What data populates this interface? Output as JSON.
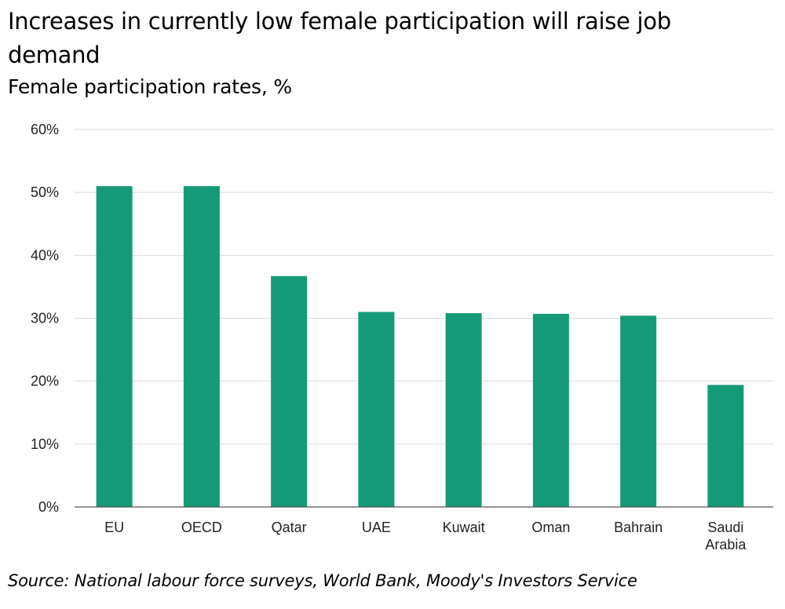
{
  "chart_data": {
    "type": "bar",
    "title": "Increases in currently low female participation will raise job demand",
    "subtitle": "Female participation rates, %",
    "source": "Source: National labour force surveys, World Bank, Moody's Investors Service",
    "categories": [
      "EU",
      "OECD",
      "Qatar",
      "UAE",
      "Kuwait",
      "Oman",
      "Bahrain",
      "Saudi Arabia"
    ],
    "values": [
      51.0,
      51.0,
      36.7,
      31.0,
      30.8,
      30.7,
      30.4,
      19.4
    ],
    "ylim": [
      0,
      60
    ],
    "yticks": [
      0,
      10,
      20,
      30,
      40,
      50,
      60
    ],
    "ytick_labels": [
      "0%",
      "10%",
      "20%",
      "30%",
      "40%",
      "50%",
      "60%"
    ],
    "xlabel": "",
    "ylabel": "",
    "grid": true,
    "bar_color": "#159a77",
    "grid_color": "#d9d9d9"
  }
}
